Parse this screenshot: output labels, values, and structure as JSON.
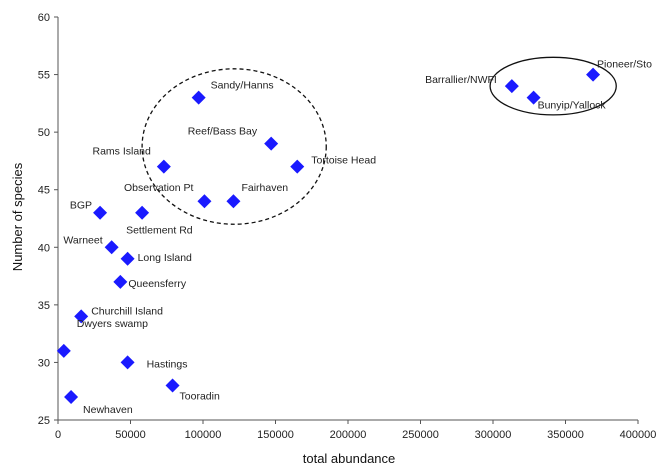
{
  "chart_data": {
    "type": "scatter",
    "title": "",
    "xlabel": "total abundance",
    "ylabel": "Number of species",
    "xlim": [
      0,
      400000
    ],
    "ylim": [
      25,
      60
    ],
    "x_ticks": [
      0,
      50000,
      100000,
      150000,
      200000,
      250000,
      300000,
      350000,
      400000
    ],
    "y_ticks": [
      25,
      30,
      35,
      40,
      45,
      50,
      55,
      60
    ],
    "x_tick_labels": [
      "0",
      "50000",
      "100000",
      "150000",
      "200000",
      "250000",
      "300000",
      "350000",
      "400000"
    ],
    "y_tick_labels": [
      "25",
      "30",
      "35",
      "40",
      "45",
      "50",
      "55",
      "60"
    ],
    "grid": false,
    "legend": "none",
    "marker": "diamond",
    "marker_color": "#1a1aff",
    "points": [
      {
        "label": "Pioneer/Sto",
        "x": 369000,
        "y": 55
      },
      {
        "label": "Barrallier/NWFI",
        "x": 313000,
        "y": 54
      },
      {
        "label": "Bunyip/Yallock",
        "x": 328000,
        "y": 53
      },
      {
        "label": "Sandy/Hanns",
        "x": 97000,
        "y": 53
      },
      {
        "label": "Reef/Bass Bay",
        "x": 147000,
        "y": 49
      },
      {
        "label": "Rams Island",
        "x": 73000,
        "y": 47
      },
      {
        "label": "Tortoise Head",
        "x": 165000,
        "y": 47
      },
      {
        "label": "Observation Pt",
        "x": 101000,
        "y": 44
      },
      {
        "label": "Fairhaven",
        "x": 121000,
        "y": 44
      },
      {
        "label": "BGP",
        "x": 29000,
        "y": 43
      },
      {
        "label": "Settlement Rd",
        "x": 58000,
        "y": 43
      },
      {
        "label": "Warneet",
        "x": 37000,
        "y": 40
      },
      {
        "label": "Long Island",
        "x": 48000,
        "y": 39
      },
      {
        "label": "Queensferry",
        "x": 43000,
        "y": 37
      },
      {
        "label": "Churchill Island",
        "x": 16000,
        "y": 34
      },
      {
        "label": "Dwyers swamp",
        "x": 4000,
        "y": 31
      },
      {
        "label": "Hastings",
        "x": 48000,
        "y": 30
      },
      {
        "label": "Tooradin",
        "x": 79000,
        "y": 28
      },
      {
        "label": "Newhaven",
        "x": 9000,
        "y": 27
      }
    ],
    "annotations": [
      {
        "shape": "ellipse",
        "style": "dashed",
        "x_range": [
          58000,
          185000
        ],
        "y_range": [
          42,
          55.5
        ]
      },
      {
        "shape": "ellipse",
        "style": "solid",
        "x_range": [
          298000,
          385000
        ],
        "y_range": [
          51.5,
          56.5
        ]
      }
    ]
  }
}
